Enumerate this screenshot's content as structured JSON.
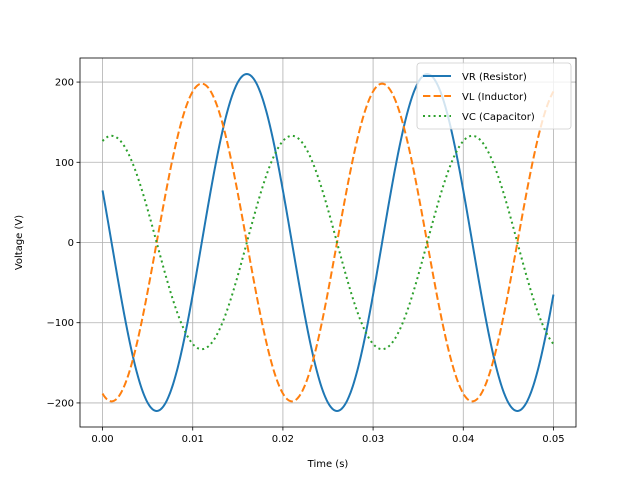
{
  "chart_data": {
    "type": "line",
    "title": "",
    "xlabel": "Time (s)",
    "ylabel": "Voltage (V)",
    "xlim": [
      -0.0025,
      0.0525
    ],
    "ylim": [
      -230,
      230
    ],
    "xticks": [
      0.0,
      0.01,
      0.02,
      0.03,
      0.04,
      0.05
    ],
    "xtick_labels": [
      "0.00",
      "0.01",
      "0.02",
      "0.03",
      "0.04",
      "0.05"
    ],
    "yticks": [
      -200,
      -100,
      0,
      100,
      200
    ],
    "ytick_labels": [
      "−200",
      "−100",
      "0",
      "100",
      "200"
    ],
    "grid": true,
    "legend_position": "top-right",
    "series": [
      {
        "name": "VR (Resistor)",
        "style": "solid",
        "color": "#1f77b4",
        "amplitude": 210,
        "frequency_hz": 50,
        "peak_time_s": 0.016,
        "t_start": 0.0,
        "t_end": 0.05
      },
      {
        "name": "VL (Inductor)",
        "style": "dashed",
        "color": "#ff7f0e",
        "amplitude": 198,
        "frequency_hz": 50,
        "peak_time_s": 0.011,
        "t_start": 0.0,
        "t_end": 0.05
      },
      {
        "name": "VC (Capacitor)",
        "style": "dotted",
        "color": "#2ca02c",
        "amplitude": 133,
        "frequency_hz": 50,
        "peak_time_s": 0.001,
        "t_start": 0.0,
        "t_end": 0.05
      }
    ]
  }
}
